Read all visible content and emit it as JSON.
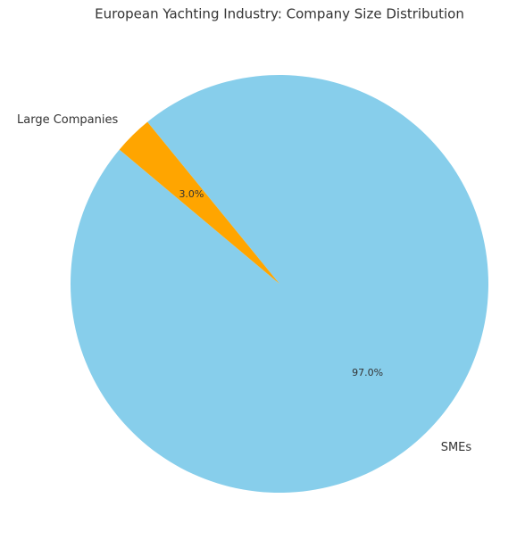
{
  "chart_data": {
    "type": "pie",
    "title": "European Yachting Industry: Company Size Distribution",
    "categories": [
      "SMEs",
      "Large Companies"
    ],
    "values": [
      97,
      3
    ],
    "value_labels": [
      "97.0%",
      "3.0%"
    ],
    "colors": [
      "#87ceeb",
      "#ffa500"
    ]
  }
}
